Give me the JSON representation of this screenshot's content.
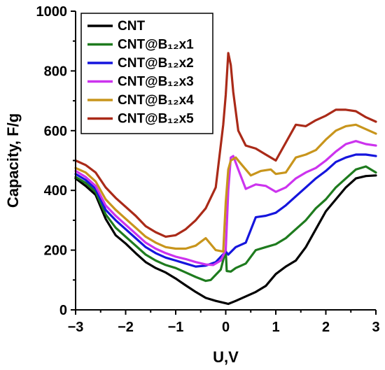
{
  "chart_data": {
    "type": "line",
    "title": "",
    "xlabel": "U,V",
    "ylabel": "Capacity, F/g",
    "xlim": [
      -3,
      3
    ],
    "ylim": [
      0,
      1000
    ],
    "xticks": [
      -3,
      -2,
      -1,
      0,
      1,
      2,
      3
    ],
    "xtick_labels": [
      "−3",
      "−2",
      "−1",
      "0",
      "1",
      "2",
      "3"
    ],
    "yticks": [
      0,
      200,
      400,
      600,
      800,
      1000
    ],
    "ytick_labels": [
      "0",
      "200",
      "400",
      "600",
      "800",
      "1000"
    ],
    "grid": false,
    "legend_position": "top-left",
    "series": [
      {
        "name": "CNT",
        "color": "#000000",
        "x": [
          -3,
          -2.8,
          -2.6,
          -2.4,
          -2.2,
          -2.0,
          -1.8,
          -1.6,
          -1.4,
          -1.2,
          -1.0,
          -0.8,
          -0.6,
          -0.4,
          -0.2,
          0.0,
          0.05,
          0.2,
          0.4,
          0.6,
          0.8,
          1.0,
          1.2,
          1.4,
          1.6,
          1.8,
          2.0,
          2.2,
          2.4,
          2.6,
          2.8,
          3.0
        ],
        "y": [
          440,
          415,
          385,
          305,
          250,
          222,
          190,
          160,
          140,
          125,
          105,
          82,
          60,
          40,
          30,
          22,
          20,
          30,
          45,
          60,
          80,
          120,
          145,
          165,
          210,
          270,
          330,
          370,
          410,
          440,
          448,
          450
        ]
      },
      {
        "name": "CNT@B₁₂x1",
        "color": "#1e7b1e",
        "x": [
          -3,
          -2.8,
          -2.6,
          -2.4,
          -2.2,
          -2.0,
          -1.8,
          -1.6,
          -1.4,
          -1.2,
          -1.0,
          -0.8,
          -0.6,
          -0.4,
          -0.3,
          -0.1,
          0.0,
          0.02,
          0.1,
          0.2,
          0.4,
          0.6,
          0.8,
          1.0,
          1.2,
          1.4,
          1.6,
          1.8,
          2.0,
          2.2,
          2.4,
          2.6,
          2.8,
          3.0
        ],
        "y": [
          445,
          425,
          395,
          320,
          275,
          245,
          215,
          185,
          165,
          150,
          140,
          125,
          110,
          97,
          100,
          135,
          200,
          130,
          128,
          140,
          155,
          200,
          210,
          220,
          240,
          270,
          300,
          340,
          370,
          410,
          440,
          470,
          480,
          460
        ]
      },
      {
        "name": "CNT@B₁₂x2",
        "color": "#1515dd",
        "x": [
          -3,
          -2.8,
          -2.6,
          -2.4,
          -2.2,
          -2.0,
          -1.8,
          -1.6,
          -1.4,
          -1.2,
          -1.0,
          -0.8,
          -0.6,
          -0.4,
          -0.2,
          0.0,
          0.05,
          0.2,
          0.4,
          0.6,
          0.8,
          1.0,
          1.2,
          1.4,
          1.6,
          1.8,
          2.0,
          2.2,
          2.4,
          2.6,
          2.8,
          3.0
        ],
        "y": [
          455,
          435,
          405,
          335,
          300,
          270,
          240,
          210,
          190,
          175,
          165,
          155,
          145,
          148,
          160,
          195,
          185,
          210,
          225,
          310,
          315,
          325,
          350,
          380,
          410,
          440,
          465,
          495,
          510,
          520,
          520,
          515
        ]
      },
      {
        "name": "CNT@B₁₂x3",
        "color": "#cc33ee",
        "x": [
          -3,
          -2.8,
          -2.6,
          -2.4,
          -2.2,
          -2.0,
          -1.8,
          -1.6,
          -1.4,
          -1.2,
          -1.0,
          -0.8,
          -0.6,
          -0.4,
          -0.25,
          -0.1,
          0.0,
          0.05,
          0.1,
          0.15,
          0.25,
          0.4,
          0.6,
          0.8,
          1.0,
          1.2,
          1.4,
          1.6,
          1.8,
          2.0,
          2.2,
          2.4,
          2.6,
          2.8,
          3.0
        ],
        "y": [
          465,
          445,
          415,
          350,
          315,
          285,
          255,
          225,
          205,
          190,
          178,
          170,
          160,
          152,
          150,
          165,
          200,
          400,
          510,
          515,
          470,
          405,
          420,
          415,
          395,
          410,
          440,
          460,
          475,
          500,
          530,
          555,
          565,
          555,
          550
        ]
      },
      {
        "name": "CNT@B₁₂x4",
        "color": "#c8951c",
        "x": [
          -3,
          -2.8,
          -2.6,
          -2.4,
          -2.2,
          -2.0,
          -1.8,
          -1.6,
          -1.4,
          -1.2,
          -1.0,
          -0.8,
          -0.6,
          -0.4,
          -0.2,
          -0.05,
          0.0,
          0.05,
          0.1,
          0.2,
          0.3,
          0.5,
          0.7,
          0.9,
          1.0,
          1.2,
          1.4,
          1.6,
          1.8,
          2.0,
          2.2,
          2.4,
          2.6,
          2.8,
          3.0
        ],
        "y": [
          475,
          460,
          430,
          370,
          335,
          305,
          275,
          245,
          225,
          210,
          205,
          205,
          215,
          240,
          200,
          195,
          360,
          470,
          500,
          510,
          490,
          450,
          465,
          470,
          455,
          460,
          510,
          520,
          535,
          570,
          600,
          615,
          620,
          605,
          590
        ]
      },
      {
        "name": "CNT@B₁₂x5",
        "color": "#aa2a18",
        "x": [
          -3,
          -2.8,
          -2.6,
          -2.4,
          -2.2,
          -2.0,
          -1.8,
          -1.6,
          -1.4,
          -1.2,
          -1.0,
          -0.8,
          -0.6,
          -0.4,
          -0.2,
          -0.05,
          0.0,
          0.05,
          0.1,
          0.15,
          0.25,
          0.4,
          0.6,
          0.8,
          1.0,
          1.2,
          1.4,
          1.6,
          1.8,
          2.0,
          2.2,
          2.4,
          2.6,
          2.8,
          3.0
        ],
        "y": [
          500,
          485,
          460,
          410,
          375,
          345,
          315,
          280,
          260,
          245,
          250,
          270,
          300,
          340,
          410,
          620,
          720,
          860,
          820,
          730,
          600,
          550,
          540,
          520,
          500,
          560,
          620,
          615,
          635,
          650,
          670,
          670,
          665,
          645,
          630
        ]
      }
    ]
  }
}
